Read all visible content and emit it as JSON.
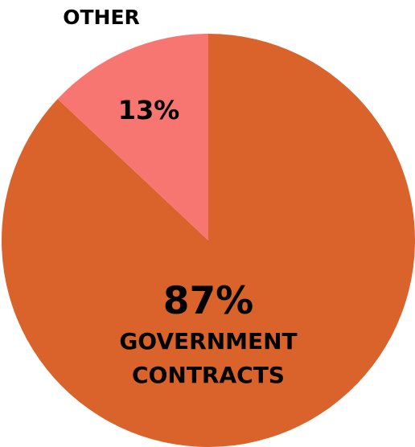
{
  "chart_data": {
    "type": "pie",
    "slices": [
      {
        "label": "GOVERNMENT CONTRACTS",
        "label_lines": [
          "GOVERNMENT",
          "CONTRACTS"
        ],
        "value": 87,
        "value_text": "87%",
        "color": "#D9632B"
      },
      {
        "label": "OTHER",
        "value": 13,
        "value_text": "13%",
        "color": "#F77672"
      }
    ],
    "start_angle_deg": 0,
    "direction": "clockwise",
    "background": "#FFFFFF"
  }
}
